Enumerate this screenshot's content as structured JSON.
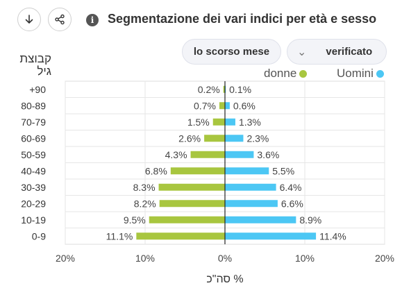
{
  "header": {
    "title": "Segmentazione dei vari indici per età e sesso",
    "info_icon": "i"
  },
  "filters": {
    "period_label": "lo scorso mese",
    "status_label": "verificato"
  },
  "chart_data": {
    "type": "bar",
    "orientation": "horizontal-diverging",
    "y_title": "קבוצת גיל",
    "xlabel": "% סה\"כ",
    "categories": [
      "+90",
      "80-89",
      "70-79",
      "60-69",
      "50-59",
      "40-49",
      "30-39",
      "20-29",
      "10-19",
      "0-9"
    ],
    "series": [
      {
        "name": "donne",
        "color": "#a8c63f",
        "side": "left",
        "values": [
          0.2,
          0.7,
          1.5,
          2.6,
          4.3,
          6.8,
          8.3,
          8.2,
          9.5,
          11.1
        ],
        "labels": [
          "0.2%",
          "0.7%",
          "1.5%",
          "2.6%",
          "4.3%",
          "6.8%",
          "8.3%",
          "8.2%",
          "9.5%",
          "11.1%"
        ]
      },
      {
        "name": "Uomini",
        "color": "#4cc7f4",
        "side": "right",
        "values": [
          0.1,
          0.6,
          1.3,
          2.3,
          3.6,
          5.5,
          6.4,
          6.6,
          8.9,
          11.4
        ],
        "labels": [
          "0.1%",
          "0.6%",
          "1.3%",
          "2.3%",
          "3.6%",
          "5.5%",
          "6.4%",
          "6.6%",
          "8.9%",
          "11.4%"
        ]
      }
    ],
    "xlim": [
      -20,
      20
    ],
    "xticks": [
      -20,
      -10,
      0,
      10,
      20
    ],
    "xtick_labels": [
      "20%",
      "10%",
      "0%",
      "10%",
      "20%"
    ],
    "grid": true,
    "legend_position": "top-right"
  }
}
